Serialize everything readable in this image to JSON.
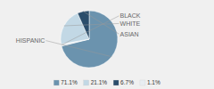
{
  "chart_data": {
    "type": "pie",
    "categories": [
      "HISPANIC",
      "BLACK",
      "WHITE",
      "ASIAN"
    ],
    "values": [
      71.1,
      1.1,
      21.1,
      6.7
    ],
    "colors": [
      "#6b93ae",
      "#e8eef2",
      "#c2d8e5",
      "#2a4d6b"
    ],
    "legend_labels": [
      "71.1%",
      "21.1%",
      "6.7%",
      "1.1%"
    ],
    "legend_colors": [
      "#6b93ae",
      "#c2d8e5",
      "#2a4d6b",
      "#e8eef2"
    ],
    "legend": "bottom"
  }
}
